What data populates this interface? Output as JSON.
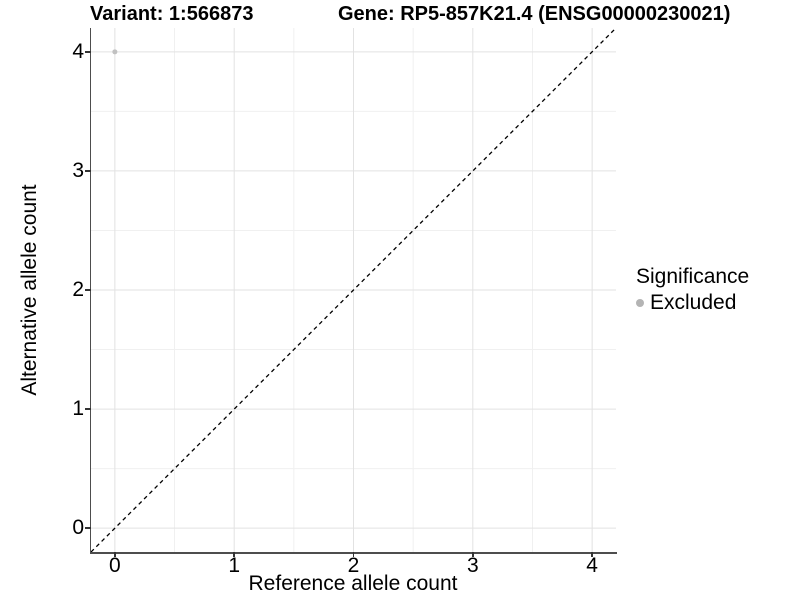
{
  "titles": {
    "variant": "Variant: 1:566873",
    "gene": "Gene: RP5-857K21.4 (ENSG00000230021)"
  },
  "axes": {
    "x": {
      "label": "Reference allele count"
    },
    "y": {
      "label": "Alternative allele count"
    }
  },
  "legend": {
    "title": "Significance",
    "items": [
      {
        "label": "Excluded",
        "color": "#b4b4b4"
      }
    ]
  },
  "colors": {
    "background": "#ffffff",
    "grid_major": "#e2e2e2",
    "grid_minor": "#f0f0f0",
    "axis_line": "#4d4d4d",
    "tick_mark": "#333333",
    "point": "#c1c1c1",
    "reference_line": "#000000",
    "text": "#000000"
  },
  "chart_data": {
    "type": "scatter",
    "title": "Variant: 1:566873",
    "subtitle": "Gene: RP5-857K21.4 (ENSG00000230021)",
    "xlabel": "Reference allele count",
    "ylabel": "Alternative allele count",
    "xlim": [
      -0.2,
      4.2
    ],
    "ylim": [
      -0.2,
      4.2
    ],
    "x_ticks": [
      0,
      1,
      2,
      3,
      4
    ],
    "y_ticks": [
      0,
      1,
      2,
      3,
      4
    ],
    "x_minor_ticks": [
      0.5,
      1.5,
      2.5,
      3.5
    ],
    "y_minor_ticks": [
      0.5,
      1.5,
      2.5,
      3.5
    ],
    "grid": "major+minor",
    "legend_position": "right",
    "series": [
      {
        "name": "Excluded",
        "color": "#c1c1c1",
        "marker_size": 2.5,
        "points": [
          [
            0,
            4
          ]
        ]
      }
    ],
    "reference_line": {
      "slope": 1,
      "intercept": 0,
      "style": "dashed",
      "color": "#000000"
    }
  }
}
